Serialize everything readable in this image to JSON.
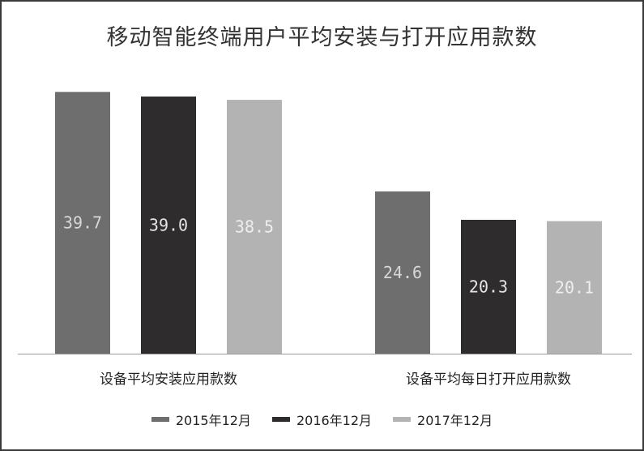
{
  "chart_data": {
    "type": "bar",
    "title": "移动智能终端用户平均安装与打开应用款数",
    "categories": [
      "设备平均安装应用款数",
      "设备平均每日打开应用款数"
    ],
    "series": [
      {
        "name": "2015年12月",
        "values": [
          39.7,
          24.6
        ],
        "color": "#6e6e6e",
        "label_color": "#d8d8d8"
      },
      {
        "name": "2016年12月",
        "values": [
          39.0,
          20.3
        ],
        "color": "#2e2c2d",
        "label_color": "#e6e6e6"
      },
      {
        "name": "2017年12月",
        "values": [
          38.5,
          20.1
        ],
        "color": "#b3b3b3",
        "label_color": "#eeeeee"
      }
    ],
    "value_labels": [
      [
        "39.7",
        "24.6"
      ],
      [
        "39.0",
        "20.3"
      ],
      [
        "38.5",
        "20.1"
      ]
    ],
    "ylim": [
      0,
      40.6
    ],
    "grid": false,
    "legend_position": "bottom",
    "axis_color": "#999999"
  }
}
